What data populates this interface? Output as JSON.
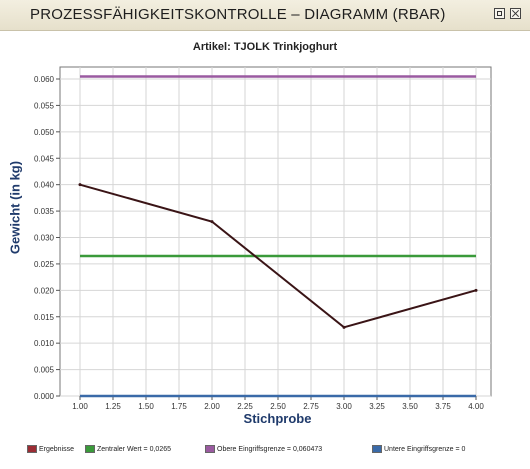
{
  "window": {
    "title": "PROZESSFÄHIGKEITSKONTROLLE  – DIAGRAMM (RBAR)"
  },
  "chart_data": {
    "type": "line",
    "title": "Artikel:  TJOLK Trinkjoghurt",
    "xlabel": "Stichprobe",
    "ylabel": "Gewicht  (in kg)",
    "xlim": [
      1.0,
      4.0
    ],
    "ylim": [
      0.0,
      0.06
    ],
    "x_ticks": [
      "1.00",
      "1.25",
      "1.50",
      "1.75",
      "2.00",
      "2.25",
      "2.50",
      "2.75",
      "3.00",
      "3.25",
      "3.50",
      "3.75",
      "4.00"
    ],
    "y_ticks": [
      "0.000",
      "0.005",
      "0.010",
      "0.015",
      "0.020",
      "0.025",
      "0.030",
      "0.035",
      "0.040",
      "0.045",
      "0.050",
      "0.055",
      "0.060"
    ],
    "grid": true,
    "legend_position": "bottom",
    "series": [
      {
        "name": "Ergebnisse",
        "color": "#9b2c34",
        "x": [
          1,
          2,
          3,
          4
        ],
        "y": [
          0.04,
          0.033,
          0.013,
          0.02
        ]
      },
      {
        "name": "Zentraler Wert = 0,0265",
        "color": "#3a9a3a",
        "x": [
          1,
          4
        ],
        "y": [
          0.0265,
          0.0265
        ]
      },
      {
        "name": "Obere Eingriffsgrenze = 0,060473",
        "color": "#9a5aa0",
        "x": [
          1,
          4
        ],
        "y": [
          0.060473,
          0.060473
        ]
      },
      {
        "name": "Untere Eingriffsgrenze = 0",
        "color": "#3a6aa8",
        "x": [
          1,
          4
        ],
        "y": [
          0,
          0
        ]
      }
    ]
  }
}
